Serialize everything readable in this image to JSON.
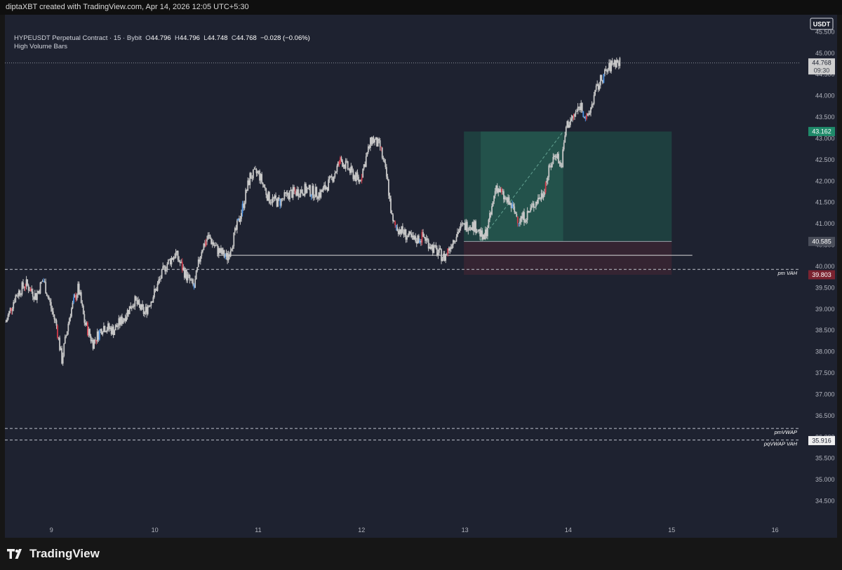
{
  "header": {
    "attribution": "diptaXBT created with TradingView.com, Apr 14, 2026 12:05 UTC+5:30"
  },
  "legend": {
    "symbol": "HYPEUSDT Perpetual Contract · 15 · Bybit",
    "open_label": "O",
    "open": "44.796",
    "high_label": "H",
    "high": "44.796",
    "low_label": "L",
    "low": "44.748",
    "close_label": "C",
    "close": "44.768",
    "change": "−0.028 (−0.06%)",
    "indicator": "High Volume Bars"
  },
  "currency_button": "USDT",
  "colors": {
    "background": "#1e2230",
    "candle": "#c8c8c8",
    "candle_blue": "#4a90e2",
    "candle_red": "#d13b4a",
    "target_zone": "#1f4a44",
    "stop_zone": "#3a2432",
    "tag_target": "#1f8a6a",
    "tag_stop": "#7b2330",
    "tag_price": "#cfcfcf"
  },
  "branding": {
    "logo_icon": "tradingview-logo-icon",
    "logo_text": "TradingView"
  },
  "chart_data": {
    "type": "candlestick",
    "symbol": "HYPEUSDT",
    "timeframe": "15",
    "ylim": [
      34.0,
      45.9
    ],
    "xlim": [
      8.55,
      16.6
    ],
    "y_ticks": [
      "34.500",
      "35.000",
      "35.500",
      "36.000",
      "36.500",
      "37.000",
      "37.500",
      "38.000",
      "38.500",
      "39.000",
      "39.500",
      "40.000",
      "40.500",
      "41.000",
      "41.500",
      "42.000",
      "42.500",
      "43.000",
      "43.500",
      "44.000",
      "44.500",
      "45.000",
      "45.500"
    ],
    "x_ticks": [
      {
        "label": "9",
        "x": 9.0
      },
      {
        "label": "10",
        "x": 10.0
      },
      {
        "label": "11",
        "x": 11.0
      },
      {
        "label": "12",
        "x": 12.0
      },
      {
        "label": "13",
        "x": 13.0
      },
      {
        "label": "14",
        "x": 14.0
      },
      {
        "label": "15",
        "x": 15.0
      },
      {
        "label": "16",
        "x": 16.0
      }
    ],
    "price_path": [
      [
        8.56,
        38.7
      ],
      [
        8.65,
        39.3
      ],
      [
        8.75,
        39.6
      ],
      [
        8.85,
        39.3
      ],
      [
        8.92,
        39.7
      ],
      [
        9.0,
        39.0
      ],
      [
        9.05,
        38.6
      ],
      [
        9.1,
        37.8
      ],
      [
        9.18,
        38.9
      ],
      [
        9.26,
        39.5
      ],
      [
        9.32,
        38.7
      ],
      [
        9.4,
        38.2
      ],
      [
        9.5,
        38.6
      ],
      [
        9.6,
        38.5
      ],
      [
        9.7,
        38.8
      ],
      [
        9.8,
        39.2
      ],
      [
        9.9,
        38.9
      ],
      [
        10.0,
        39.4
      ],
      [
        10.1,
        40.0
      ],
      [
        10.2,
        40.3
      ],
      [
        10.3,
        39.8
      ],
      [
        10.38,
        39.5
      ],
      [
        10.45,
        40.4
      ],
      [
        10.52,
        40.7
      ],
      [
        10.6,
        40.4
      ],
      [
        10.7,
        40.2
      ],
      [
        10.78,
        40.8
      ],
      [
        10.85,
        41.4
      ],
      [
        10.92,
        42.1
      ],
      [
        11.0,
        42.2
      ],
      [
        11.1,
        41.6
      ],
      [
        11.2,
        41.5
      ],
      [
        11.3,
        41.7
      ],
      [
        11.45,
        41.8
      ],
      [
        11.6,
        41.7
      ],
      [
        11.7,
        42.0
      ],
      [
        11.8,
        42.5
      ],
      [
        11.9,
        42.2
      ],
      [
        11.98,
        42.0
      ],
      [
        12.05,
        42.6
      ],
      [
        12.1,
        43.0
      ],
      [
        12.18,
        42.8
      ],
      [
        12.25,
        42.0
      ],
      [
        12.3,
        41.0
      ],
      [
        12.4,
        40.8
      ],
      [
        12.5,
        40.6
      ],
      [
        12.6,
        40.7
      ],
      [
        12.7,
        40.4
      ],
      [
        12.8,
        40.2
      ],
      [
        12.88,
        40.6
      ],
      [
        12.95,
        40.9
      ],
      [
        13.05,
        41.0
      ],
      [
        13.12,
        40.9
      ],
      [
        13.18,
        40.6
      ],
      [
        13.25,
        41.2
      ],
      [
        13.3,
        41.9
      ],
      [
        13.38,
        41.6
      ],
      [
        13.45,
        41.4
      ],
      [
        13.52,
        41.1
      ],
      [
        13.6,
        41.2
      ],
      [
        13.68,
        41.5
      ],
      [
        13.75,
        41.7
      ],
      [
        13.82,
        42.3
      ],
      [
        13.88,
        42.7
      ],
      [
        13.93,
        42.3
      ],
      [
        13.98,
        43.3
      ],
      [
        14.05,
        43.5
      ],
      [
        14.12,
        43.8
      ],
      [
        14.18,
        43.4
      ],
      [
        14.25,
        44.0
      ],
      [
        14.32,
        44.4
      ],
      [
        14.38,
        44.6
      ],
      [
        14.44,
        44.8
      ],
      [
        14.5,
        44.77
      ]
    ],
    "level_lines": [
      {
        "name": "pm VAH",
        "price": 39.93,
        "style": "dashed",
        "label": "pm VAH"
      },
      {
        "name": "pmVWAP",
        "price": 36.2,
        "style": "dashed",
        "label": "pmVWAP"
      },
      {
        "name": "pqVWAP VAH",
        "price": 35.93,
        "style": "dashed",
        "label": "pqVWAP VAH"
      },
      {
        "name": "last price",
        "price": 44.77,
        "style": "dotted",
        "label": ""
      },
      {
        "name": "support",
        "price": 40.26,
        "style": "solid",
        "label": "",
        "x_start": 10.6,
        "x_end": 15.2
      }
    ],
    "position": {
      "type": "long",
      "x_start": 12.99,
      "x_end": 15.0,
      "fill_end": 13.95,
      "entry": 40.585,
      "target": 43.162,
      "stop": 39.803
    },
    "price_tags": [
      {
        "value": "44.768",
        "sub": "09:30",
        "price": 44.77,
        "kind": "price"
      },
      {
        "value": "43.162",
        "price": 43.162,
        "kind": "target"
      },
      {
        "value": "40.585",
        "price": 40.585,
        "kind": "entry"
      },
      {
        "value": "39.803",
        "price": 39.803,
        "kind": "stop"
      },
      {
        "value": "35.916",
        "price": 35.916,
        "kind": "plain"
      }
    ]
  }
}
